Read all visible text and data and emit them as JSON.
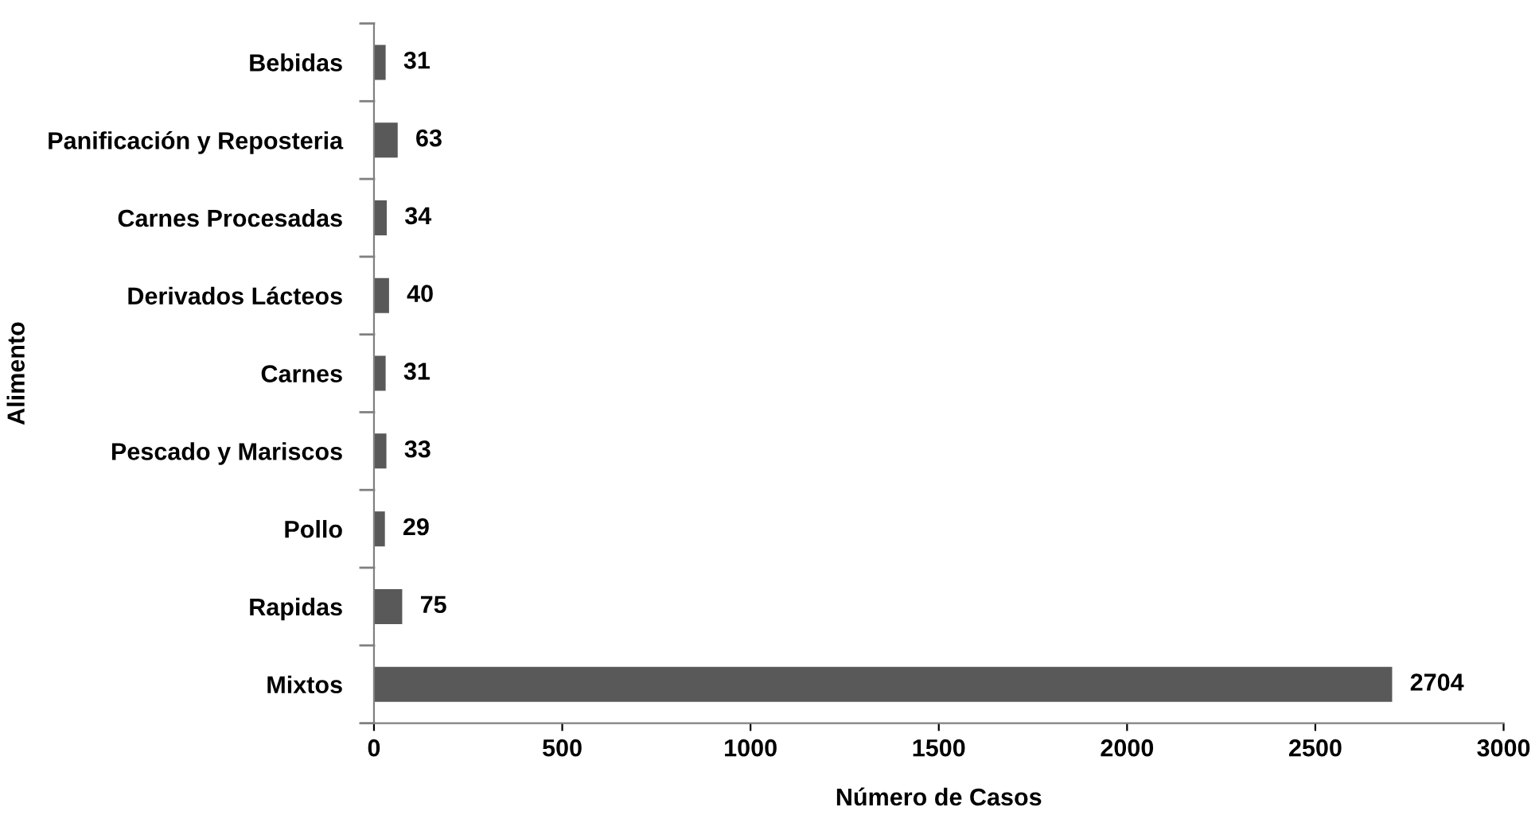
{
  "chart_data": {
    "type": "bar",
    "orientation": "horizontal",
    "xlabel": "Número de Casos",
    "ylabel": "Alimento",
    "categories": [
      "Bebidas",
      "Panificación y Reposteria",
      "Carnes Procesadas",
      "Derivados Lácteos",
      "Carnes",
      "Pescado y Mariscos",
      "Pollo",
      "Rapidas",
      "Mixtos"
    ],
    "values": [
      31,
      63,
      34,
      40,
      31,
      33,
      29,
      75,
      2704
    ],
    "color": "#595959",
    "xlim": [
      0,
      3000
    ],
    "xticks": [
      0,
      500,
      1000,
      1500,
      2000,
      2500,
      3000
    ],
    "grid": false,
    "data_labels": true
  }
}
